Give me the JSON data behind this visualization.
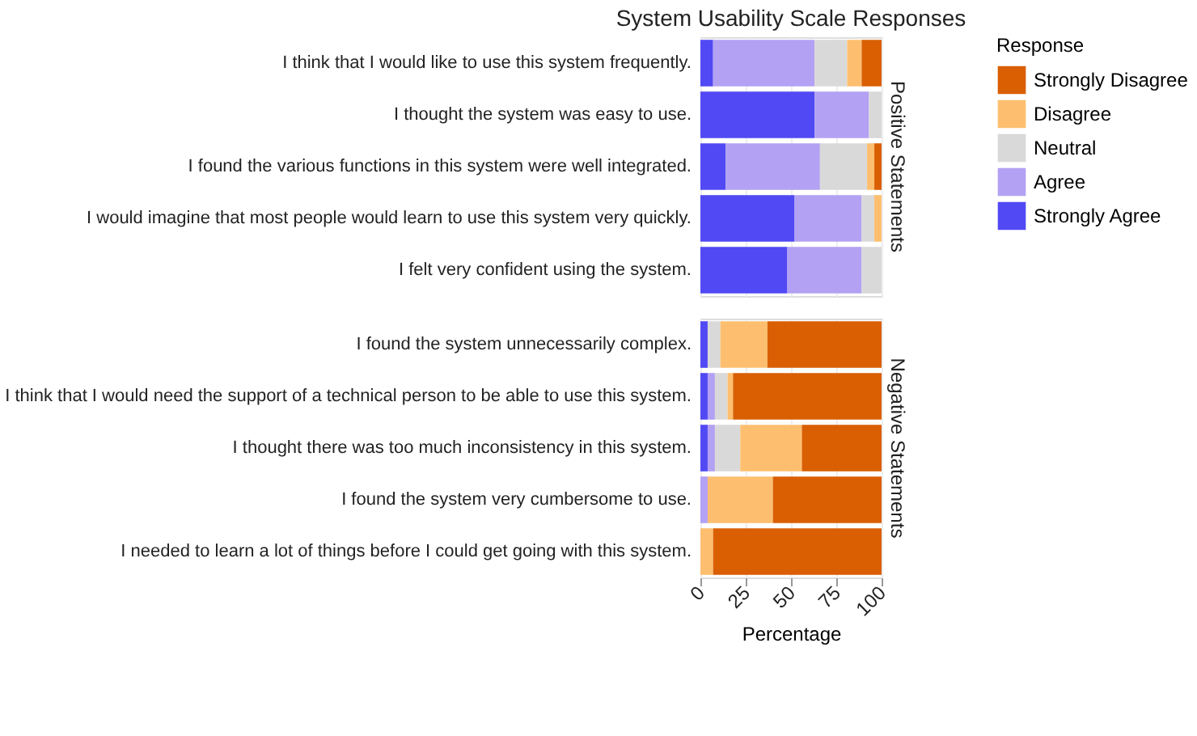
{
  "chart_data": [
    {
      "type": "bar",
      "orientation": "horizontal",
      "stacked": true,
      "title": "System Usability Scale Responses",
      "y2label": "Positive Statements",
      "legend_title": "Response",
      "legend": "right",
      "grid": "x",
      "tick_labels": "y",
      "xlim": [
        0,
        100
      ],
      "xticks": [
        0,
        25,
        50,
        75,
        100
      ],
      "categories": [
        "I think that I would like to use this system frequently.",
        "I thought the system was easy to use.",
        "I found the various functions in this system were well integrated.",
        "I would imagine that most people would learn to use this system very quickly.",
        "I felt very confident using the system."
      ],
      "series": [
        {
          "name": "Strongly Agree",
          "color": "#5149f3",
          "values": [
            7,
            63,
            14,
            52,
            48
          ]
        },
        {
          "name": "Agree",
          "color": "#b3a1f3",
          "values": [
            56,
            30,
            52,
            37,
            41
          ]
        },
        {
          "name": "Neutral",
          "color": "#d9d9d9",
          "values": [
            18,
            7,
            26,
            7,
            11
          ]
        },
        {
          "name": "Disagree",
          "color": "#fdbf6f",
          "values": [
            8,
            0,
            4,
            4,
            0
          ]
        },
        {
          "name": "Strongly Disagree",
          "color": "#d95f02",
          "values": [
            11,
            0,
            4,
            0,
            0
          ]
        }
      ]
    },
    {
      "type": "bar",
      "orientation": "horizontal",
      "stacked": true,
      "y2label": "Negative Statements",
      "xlabel": "Percentage",
      "grid": "x",
      "xlim": [
        0,
        100
      ],
      "xticks": [
        0,
        25,
        50,
        75,
        100
      ],
      "categories": [
        "I found the system unnecessarily complex.",
        "I think that I would need the support of a technical person to be able to use this system.",
        "I thought there was too much inconsistency in this system.",
        "I found the system very cumbersome to use.",
        "I needed to learn a lot of things before I could get going with this system."
      ],
      "series": [
        {
          "name": "Strongly Agree",
          "color": "#5149f3",
          "values": [
            4,
            4,
            4,
            0,
            0
          ]
        },
        {
          "name": "Agree",
          "color": "#b3a1f3",
          "values": [
            0,
            4,
            4,
            4,
            0
          ]
        },
        {
          "name": "Neutral",
          "color": "#d9d9d9",
          "values": [
            7,
            7,
            14,
            0,
            0
          ]
        },
        {
          "name": "Disagree",
          "color": "#fdbf6f",
          "values": [
            26,
            3,
            34,
            36,
            7
          ]
        },
        {
          "name": "Strongly Disagree",
          "color": "#d95f02",
          "values": [
            63,
            82,
            44,
            60,
            93
          ]
        }
      ]
    }
  ]
}
